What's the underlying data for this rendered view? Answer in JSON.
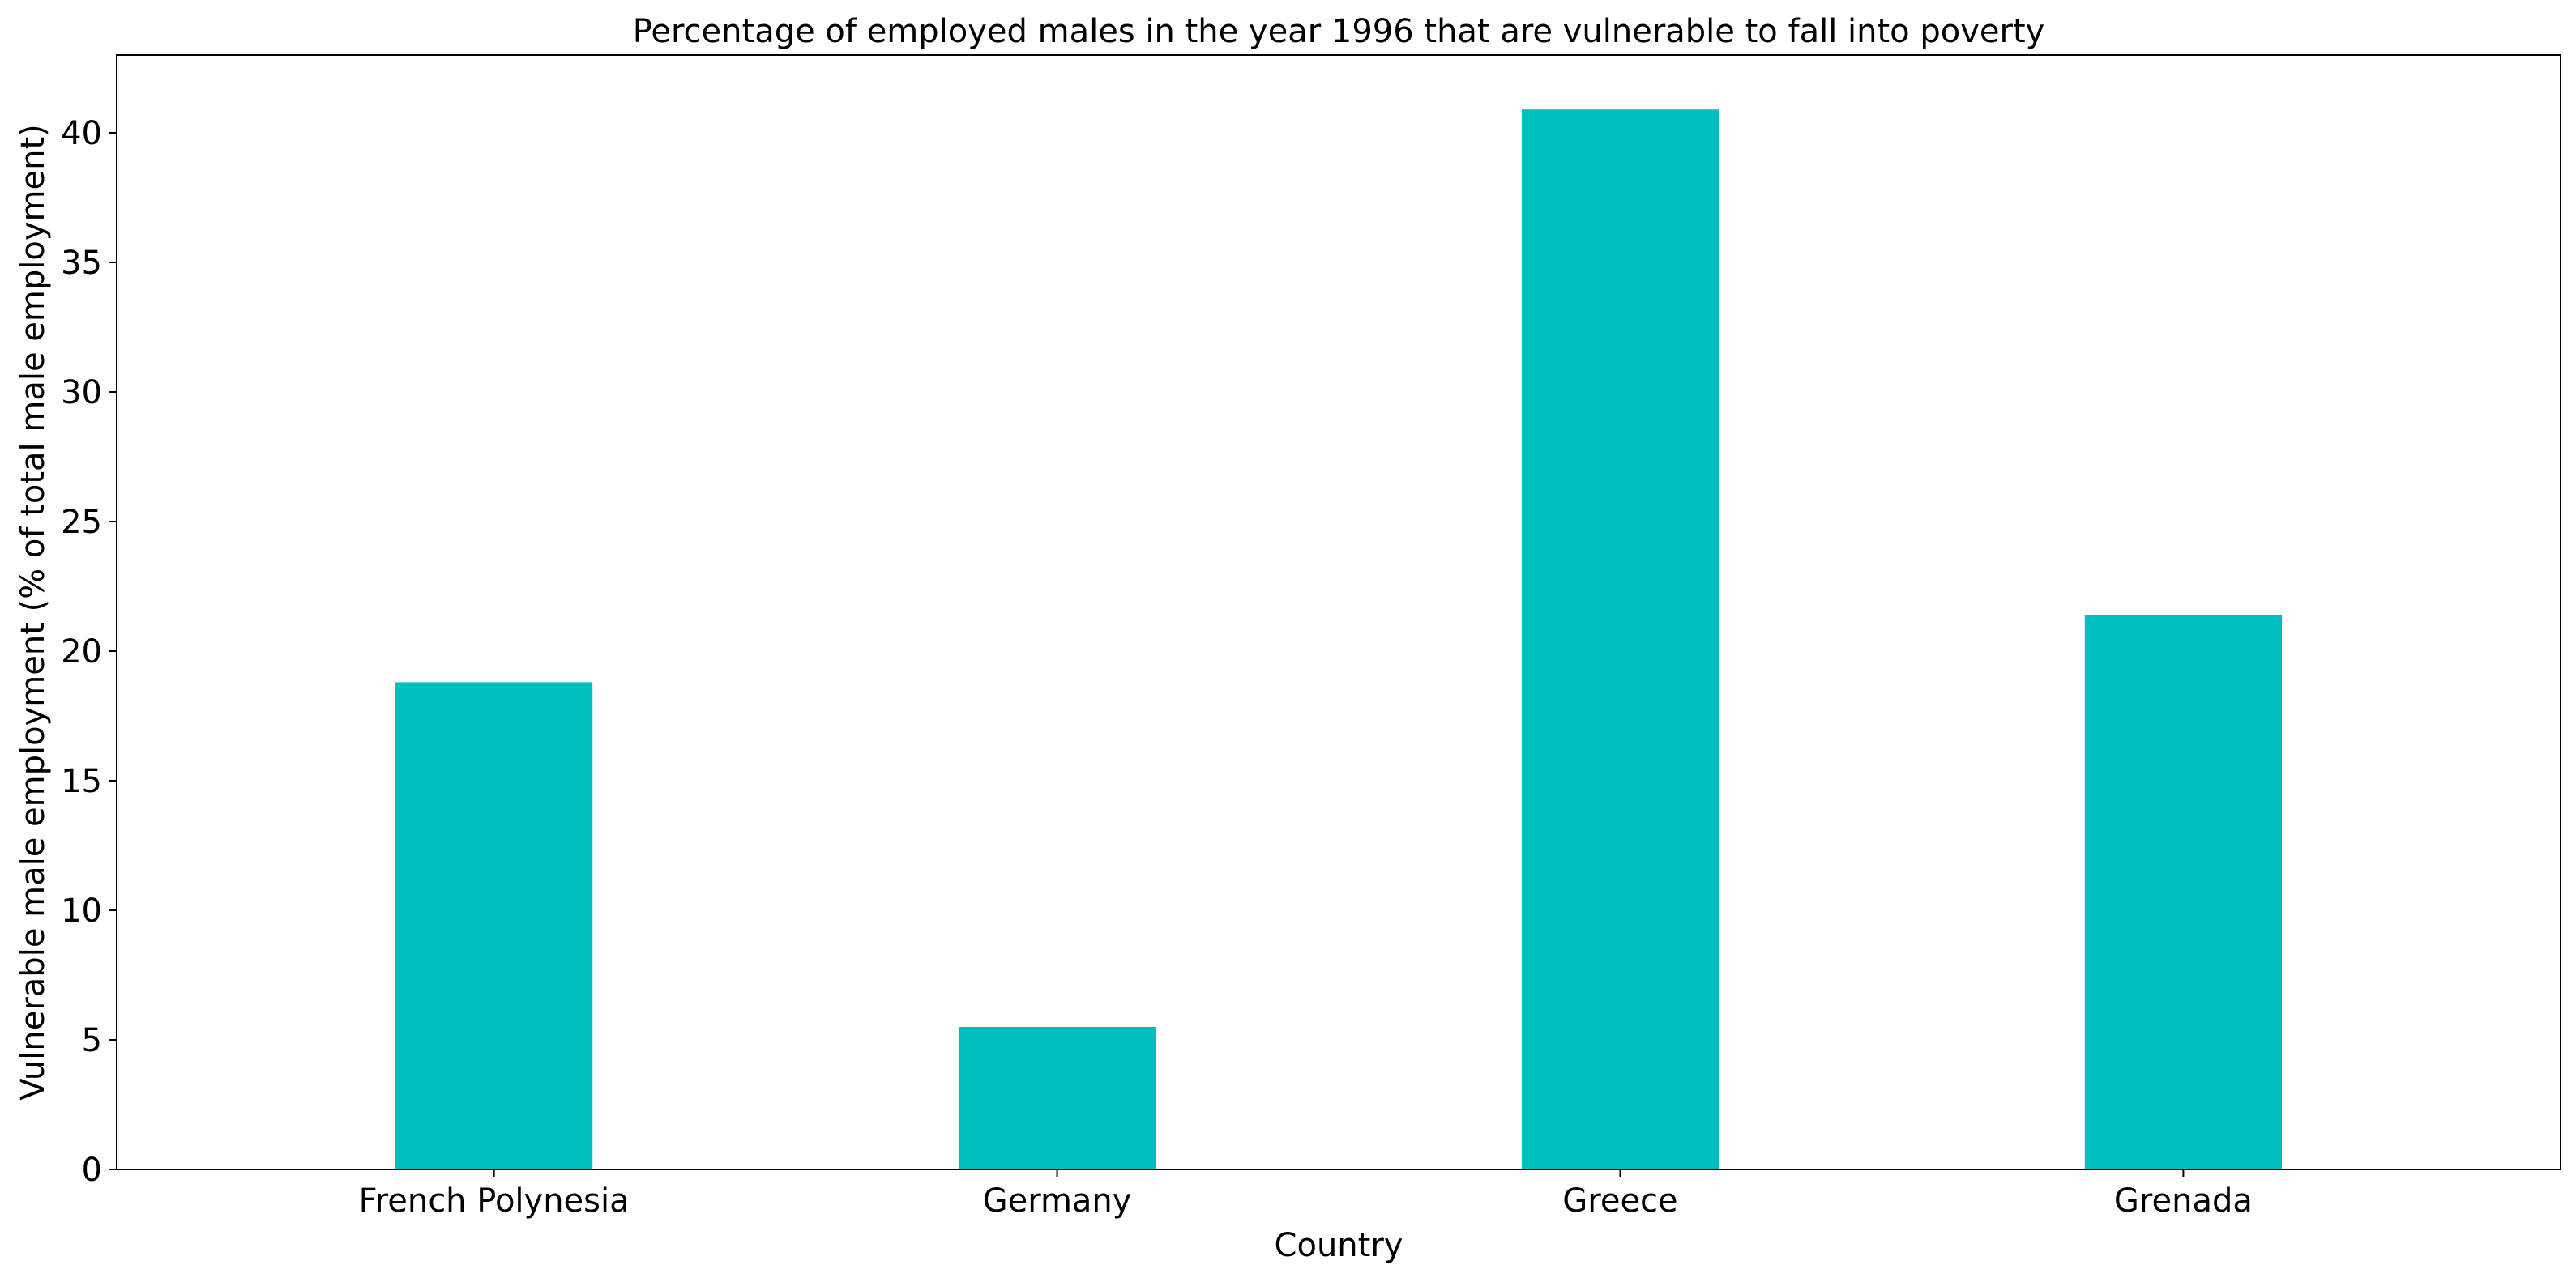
{
  "chart_data": {
    "type": "bar",
    "title": "Percentage of employed males in the year 1996 that are vulnerable to fall into poverty",
    "xlabel": "Country",
    "ylabel": "Vulnerable male employment (% of total male employment)",
    "categories": [
      "French Polynesia",
      "Germany",
      "Greece",
      "Grenada"
    ],
    "values": [
      18.8,
      5.5,
      40.9,
      21.4
    ],
    "ylim": [
      0,
      43
    ],
    "yticks": [
      0,
      5,
      10,
      15,
      20,
      25,
      30,
      35,
      40
    ],
    "bar_color": "#00bfbf",
    "grid": false,
    "legend": "none"
  }
}
